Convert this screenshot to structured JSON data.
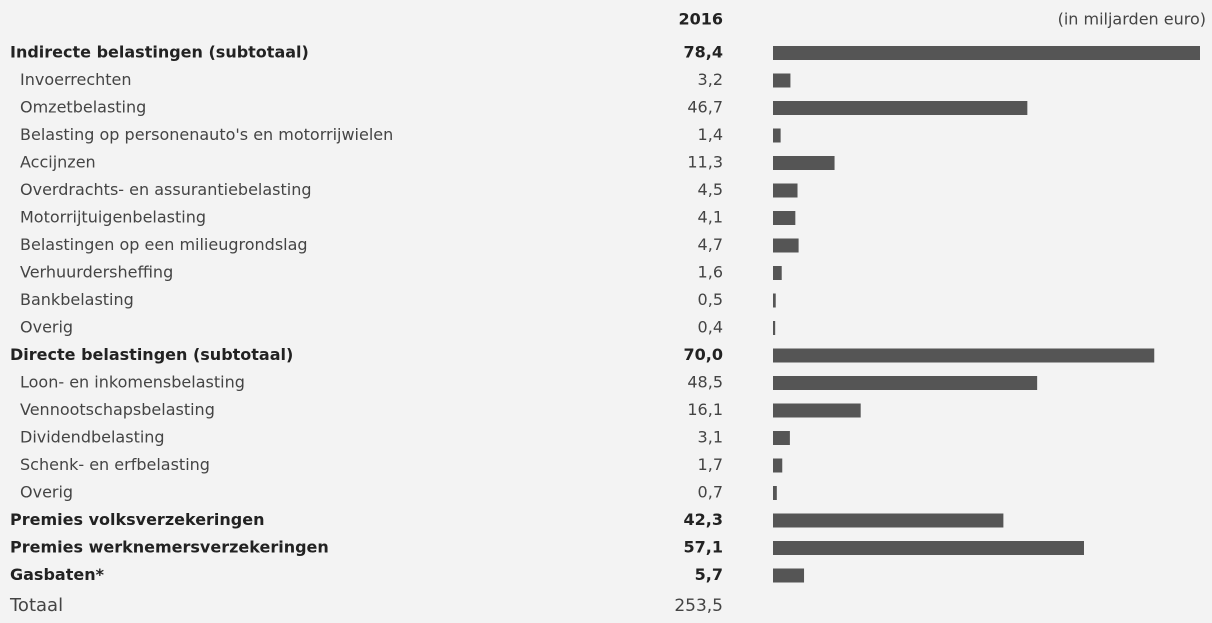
{
  "chart_data": {
    "type": "bar",
    "orientation": "horizontal",
    "column_header": "2016",
    "unit": "(in miljarden euro)",
    "color": "#555555",
    "categories": [
      "Indirecte belastingen (subtotaal)",
      "Invoerrechten",
      "Omzetbelasting",
      "Belasting op personenauto's en motorrijwielen",
      "Accijnzen",
      "Overdrachts- en assurantiebelasting",
      "Motorrijtuigenbelasting",
      "Belastingen op een milieugrondslag",
      "Verhuurdersheffing",
      "Bankbelasting",
      "Overig",
      "Directe belastingen (subtotaal)",
      "Loon- en inkomensbelasting",
      "Vennootschapsbelasting",
      "Dividendbelasting",
      "Schenk- en erfbelasting",
      "Overig",
      "Premies volksverzekeringen",
      "Premies werknemersverzekeringen",
      "Gasbaten*"
    ],
    "values": [
      78.4,
      3.2,
      46.7,
      1.4,
      11.3,
      4.5,
      4.1,
      4.7,
      1.6,
      0.5,
      0.4,
      70.0,
      48.5,
      16.1,
      3.1,
      1.7,
      0.7,
      42.3,
      57.1,
      5.7
    ],
    "value_labels": [
      "78,4",
      "3,2",
      "46,7",
      "1,4",
      "11,3",
      "4,5",
      "4,1",
      "4,7",
      "1,6",
      "0,5",
      "0,4",
      "70,0",
      "48,5",
      "16,1",
      "3,1",
      "1,7",
      "0,7",
      "42,3",
      "57,1",
      "5,7"
    ],
    "bold": [
      true,
      false,
      false,
      false,
      false,
      false,
      false,
      false,
      false,
      false,
      false,
      true,
      false,
      false,
      false,
      false,
      false,
      true,
      true,
      true
    ],
    "total": {
      "label": "Totaal",
      "value": 253.5,
      "value_label": "253,5"
    }
  }
}
